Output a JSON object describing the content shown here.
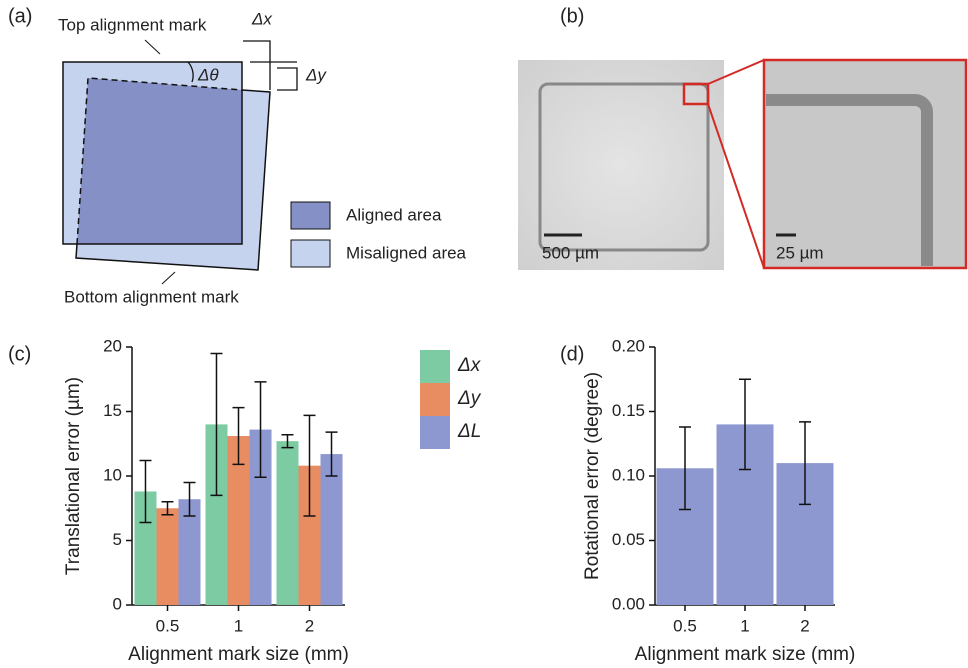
{
  "panel_a": {
    "label": "(a)",
    "top_mark": "Top alignment mark",
    "bottom_mark": "Bottom alignment mark",
    "dtheta": "Δθ",
    "dx": "Δx",
    "dy": "Δy",
    "legend": [
      "Aligned area",
      "Misaligned area"
    ]
  },
  "panel_b": {
    "label": "(b)",
    "scale_left": "500 µm",
    "scale_right": "25 µm"
  },
  "chart_data": [
    {
      "type": "bar",
      "panel_label": "(c)",
      "y_label": "Translational error (µm)",
      "x_label": "Alignment mark size (mm)",
      "categories": [
        "0.5",
        "1",
        "2"
      ],
      "series": [
        {
          "name": "Δx",
          "color": "#7ccba2",
          "values": [
            8.8,
            14.0,
            12.7
          ],
          "errors": [
            2.4,
            5.5,
            0.5
          ]
        },
        {
          "name": "Δy",
          "color": "#e88c62",
          "values": [
            7.5,
            13.1,
            10.8
          ],
          "errors": [
            0.5,
            2.2,
            3.9
          ]
        },
        {
          "name": "ΔL",
          "color": "#8d98d1",
          "values": [
            8.2,
            13.6,
            11.7
          ],
          "errors": [
            1.3,
            3.7,
            1.7
          ]
        }
      ],
      "ylim": [
        0,
        20
      ],
      "yticks": [
        0,
        5,
        10,
        15,
        20
      ]
    },
    {
      "type": "bar",
      "panel_label": "(d)",
      "y_label": "Rotational error (degree)",
      "x_label": "Alignment mark size (mm)",
      "categories": [
        "0.5",
        "1",
        "2"
      ],
      "series": [
        {
          "color": "#8d98d1",
          "values": [
            0.106,
            0.14,
            0.11
          ],
          "errors": [
            0.032,
            0.035,
            0.032
          ]
        }
      ],
      "ylim": [
        0,
        0.2
      ],
      "yticks": [
        {
          "value": 0,
          "label": "0.00"
        },
        {
          "value": 0.05,
          "label": "0.05"
        },
        {
          "value": 0.1,
          "label": "0.10"
        },
        {
          "value": 0.15,
          "label": "0.15"
        },
        {
          "value": 0.2,
          "label": "0.20"
        }
      ]
    }
  ]
}
